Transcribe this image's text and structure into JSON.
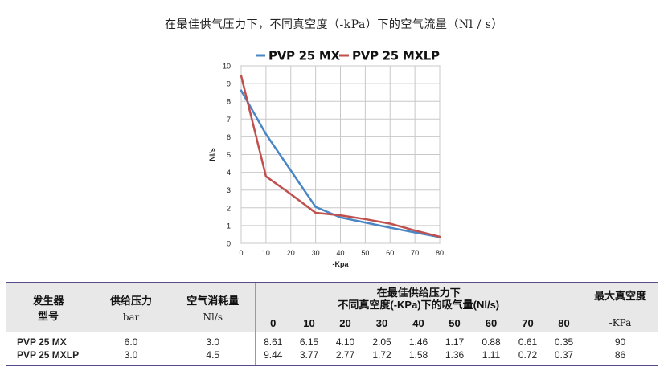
{
  "title": "在最佳供气压力下，不同真空度（-kPa）下的空气流量（Nl / s）",
  "chart_data": {
    "type": "line",
    "x": [
      0,
      10,
      20,
      30,
      40,
      50,
      60,
      70,
      80
    ],
    "xlabel": "-Kpa",
    "ylabel": "Nl/s",
    "xlim": [
      0,
      80
    ],
    "ylim": [
      0,
      10
    ],
    "xticks": [
      "0",
      "10",
      "20",
      "30",
      "40",
      "50",
      "60",
      "70",
      "80"
    ],
    "yticks": [
      "0",
      "1",
      "2",
      "3",
      "4",
      "5",
      "6",
      "7",
      "8",
      "9",
      "10"
    ],
    "grid": true,
    "legend": "top",
    "series": [
      {
        "name": "PVP 25 MX",
        "color": "#4a86c5",
        "values": [
          8.61,
          6.15,
          4.1,
          2.05,
          1.46,
          1.17,
          0.88,
          0.61,
          0.35
        ]
      },
      {
        "name": "PVP 25 MXLP",
        "color": "#c0504d",
        "values": [
          9.44,
          3.77,
          2.77,
          1.72,
          1.58,
          1.36,
          1.11,
          0.72,
          0.37
        ]
      }
    ]
  },
  "table": {
    "headers": {
      "generator_line1": "发生器",
      "generator_line2": "型号",
      "pressure_label": "供给压力",
      "pressure_unit": "bar",
      "consumption_label": "空气消耗量",
      "consumption_unit": "Nl/s",
      "flow_line1": "在最佳供给压力下",
      "flow_line2": "不同真空度(-KPa)下的吸气量(Nl/s)",
      "vacuum_cols": [
        "0",
        "10",
        "20",
        "30",
        "40",
        "50",
        "60",
        "70",
        "80"
      ],
      "max_vacuum_label": "最大真空度",
      "max_vacuum_unit": "-KPa"
    },
    "rows": [
      {
        "model": "PVP 25 MX",
        "pressure": "6.0",
        "consumption": "3.0",
        "flows": [
          "8.61",
          "6.15",
          "4.10",
          "2.05",
          "1.46",
          "1.17",
          "0.88",
          "0.61",
          "0.35"
        ],
        "max_vacuum": "90"
      },
      {
        "model": "PVP 25 MXLP",
        "pressure": "3.0",
        "consumption": "4.5",
        "flows": [
          "9.44",
          "3.77",
          "2.77",
          "1.72",
          "1.58",
          "1.36",
          "1.11",
          "0.72",
          "0.37"
        ],
        "max_vacuum": "86"
      }
    ]
  }
}
